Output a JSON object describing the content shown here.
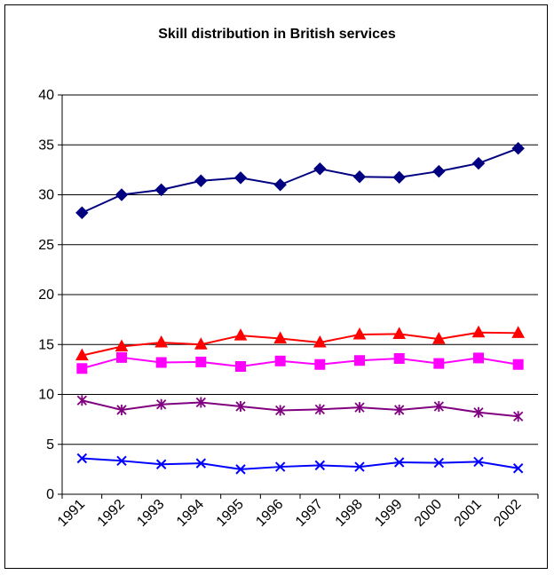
{
  "chart_data": {
    "type": "line",
    "title": "Skill distribution in British services",
    "xlabel": "",
    "ylabel": "",
    "categories": [
      "1991",
      "1992",
      "1993",
      "1994",
      "1995",
      "1996",
      "1997",
      "1998",
      "1999",
      "2000",
      "2001",
      "2002"
    ],
    "ylim": [
      0,
      40
    ],
    "yticks": [
      "0",
      "5",
      "10",
      "15",
      "20",
      "25",
      "30",
      "35",
      "40"
    ],
    "grid": true,
    "legend": "none",
    "series": [
      {
        "color": "#000080",
        "marker": "diamond",
        "values": [
          28.2,
          30.0,
          30.5,
          31.4,
          31.7,
          31.0,
          32.6,
          31.8,
          31.75,
          32.35,
          33.15,
          34.65
        ]
      },
      {
        "color": "#FF0000",
        "marker": "triangle",
        "values": [
          13.9,
          14.8,
          15.2,
          15.0,
          15.9,
          15.6,
          15.2,
          16.0,
          16.05,
          15.55,
          16.2,
          16.15
        ]
      },
      {
        "color": "#FF00FF",
        "marker": "square",
        "values": [
          12.6,
          13.7,
          13.2,
          13.25,
          12.8,
          13.35,
          13.0,
          13.4,
          13.6,
          13.1,
          13.65,
          13.0
        ]
      },
      {
        "color": "#800080",
        "marker": "asterisk",
        "values": [
          9.4,
          8.45,
          9.0,
          9.2,
          8.8,
          8.4,
          8.5,
          8.7,
          8.45,
          8.8,
          8.2,
          7.8
        ]
      },
      {
        "color": "#0000FF",
        "marker": "x",
        "values": [
          3.6,
          3.35,
          3.0,
          3.1,
          2.5,
          2.75,
          2.9,
          2.75,
          3.2,
          3.15,
          3.25,
          2.6
        ]
      }
    ]
  }
}
